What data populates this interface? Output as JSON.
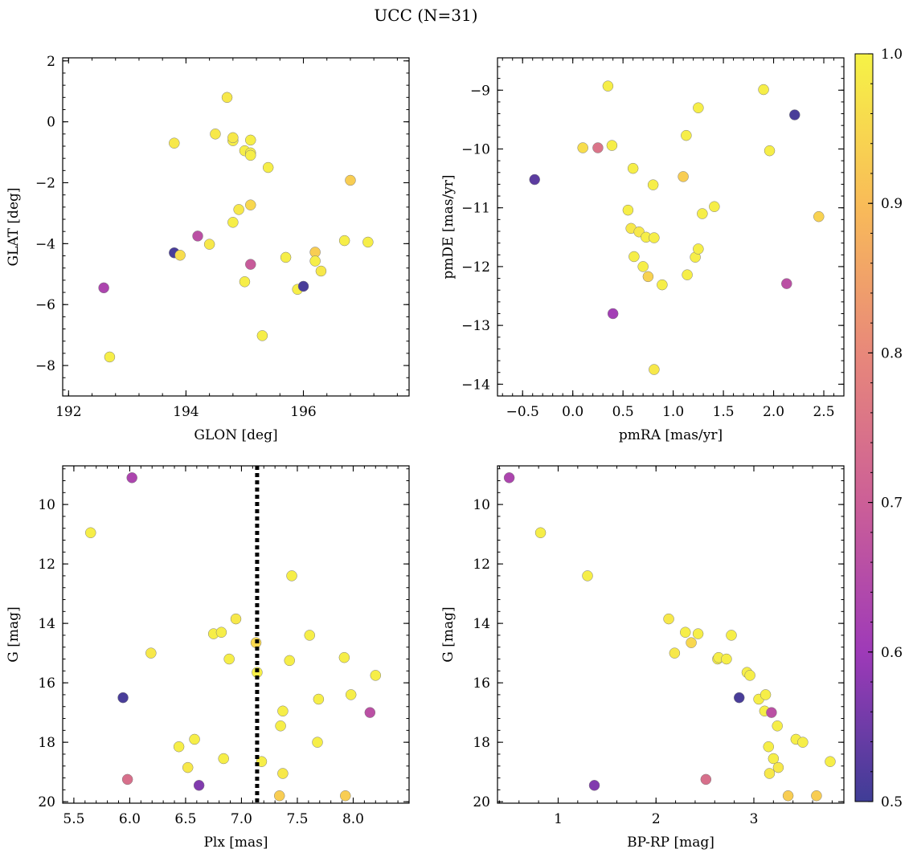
{
  "figure": {
    "title": "UCC (N=31)"
  },
  "colorbar": {
    "min": 0.5,
    "max": 1.0,
    "ticks": [
      0.5,
      0.6,
      0.7,
      0.8,
      0.9,
      1.0
    ],
    "tick_labels": [
      "0.5",
      "0.6",
      "0.7",
      "0.8",
      "0.9",
      "1.0"
    ],
    "colormap": "plasma"
  },
  "chart_data": [
    {
      "type": "scatter",
      "xlabel": "GLON [deg]",
      "ylabel": "GLAT [deg]",
      "xlim": [
        191.9,
        197.8
      ],
      "ylim": [
        -9.0,
        2.1
      ],
      "xticks": [
        192,
        194,
        196
      ],
      "xtick_labels": [
        "192",
        "194",
        "196"
      ],
      "yticks": [
        2,
        0,
        -2,
        -4,
        -6,
        -8
      ],
      "ytick_labels": [
        "2",
        "0",
        "−2",
        "−4",
        "−6",
        "−8"
      ],
      "y_inverted": false,
      "points": [
        {
          "x": 192.6,
          "y": -5.45,
          "c": 0.63
        },
        {
          "x": 192.7,
          "y": -7.72,
          "c": 0.99
        },
        {
          "x": 193.8,
          "y": -0.7,
          "c": 0.98
        },
        {
          "x": 193.8,
          "y": -4.3,
          "c": 0.51
        },
        {
          "x": 193.9,
          "y": -4.38,
          "c": 0.96
        },
        {
          "x": 194.2,
          "y": -3.75,
          "c": 0.66
        },
        {
          "x": 194.4,
          "y": -4.02,
          "c": 0.98
        },
        {
          "x": 194.5,
          "y": -0.4,
          "c": 0.98
        },
        {
          "x": 194.7,
          "y": 0.8,
          "c": 0.98
        },
        {
          "x": 194.8,
          "y": -0.62,
          "c": 0.99
        },
        {
          "x": 194.8,
          "y": -0.52,
          "c": 0.98
        },
        {
          "x": 194.8,
          "y": -3.3,
          "c": 0.99
        },
        {
          "x": 194.9,
          "y": -2.88,
          "c": 0.98
        },
        {
          "x": 195.0,
          "y": -0.95,
          "c": 0.99
        },
        {
          "x": 195.0,
          "y": -5.25,
          "c": 0.99
        },
        {
          "x": 195.1,
          "y": -1.02,
          "c": 0.99
        },
        {
          "x": 195.1,
          "y": -1.1,
          "c": 0.99
        },
        {
          "x": 195.1,
          "y": -2.73,
          "c": 0.95
        },
        {
          "x": 195.1,
          "y": -4.68,
          "c": 0.69
        },
        {
          "x": 195.1,
          "y": -0.6,
          "c": 0.99
        },
        {
          "x": 195.3,
          "y": -7.02,
          "c": 0.99
        },
        {
          "x": 195.4,
          "y": -1.5,
          "c": 0.99
        },
        {
          "x": 195.7,
          "y": -4.45,
          "c": 0.99
        },
        {
          "x": 195.9,
          "y": -5.5,
          "c": 0.99
        },
        {
          "x": 196.0,
          "y": -5.4,
          "c": 0.51
        },
        {
          "x": 196.2,
          "y": -4.28,
          "c": 0.93
        },
        {
          "x": 196.2,
          "y": -4.57,
          "c": 0.99
        },
        {
          "x": 196.3,
          "y": -4.9,
          "c": 0.98
        },
        {
          "x": 196.7,
          "y": -3.9,
          "c": 0.99
        },
        {
          "x": 196.8,
          "y": -1.92,
          "c": 0.93
        },
        {
          "x": 197.1,
          "y": -3.95,
          "c": 0.99
        }
      ]
    },
    {
      "type": "scatter",
      "xlabel": "pmRA [mas/yr]",
      "ylabel": "pmDE [mas/yr]",
      "xlim": [
        -0.75,
        2.7
      ],
      "ylim": [
        -14.2,
        -8.45
      ],
      "xticks": [
        -0.5,
        0.0,
        0.5,
        1.0,
        1.5,
        2.0,
        2.5
      ],
      "xtick_labels": [
        "−0.5",
        "0.0",
        "0.5",
        "1.0",
        "1.5",
        "2.0",
        "2.5"
      ],
      "yticks": [
        -9,
        -10,
        -11,
        -12,
        -13,
        -14
      ],
      "ytick_labels": [
        "−9",
        "−10",
        "−11",
        "−12",
        "−13",
        "−14"
      ],
      "y_inverted": false,
      "points": [
        {
          "x": -0.38,
          "y": -10.52,
          "c": 0.53
        },
        {
          "x": 0.1,
          "y": -9.98,
          "c": 0.96
        },
        {
          "x": 0.25,
          "y": -9.98,
          "c": 0.75
        },
        {
          "x": 0.35,
          "y": -8.93,
          "c": 0.99
        },
        {
          "x": 0.39,
          "y": -9.94,
          "c": 0.99
        },
        {
          "x": 0.4,
          "y": -12.8,
          "c": 0.61
        },
        {
          "x": 0.55,
          "y": -11.04,
          "c": 0.99
        },
        {
          "x": 0.58,
          "y": -11.35,
          "c": 0.98
        },
        {
          "x": 0.6,
          "y": -10.33,
          "c": 0.99
        },
        {
          "x": 0.61,
          "y": -11.83,
          "c": 0.99
        },
        {
          "x": 0.66,
          "y": -11.41,
          "c": 0.98
        },
        {
          "x": 0.7,
          "y": -12.0,
          "c": 0.99
        },
        {
          "x": 0.73,
          "y": -11.5,
          "c": 0.99
        },
        {
          "x": 0.75,
          "y": -12.17,
          "c": 0.94
        },
        {
          "x": 0.8,
          "y": -10.61,
          "c": 0.99
        },
        {
          "x": 0.81,
          "y": -11.51,
          "c": 0.99
        },
        {
          "x": 0.81,
          "y": -13.75,
          "c": 0.98
        },
        {
          "x": 0.89,
          "y": -12.31,
          "c": 0.99
        },
        {
          "x": 1.1,
          "y": -10.47,
          "c": 0.93
        },
        {
          "x": 1.13,
          "y": -9.77,
          "c": 0.99
        },
        {
          "x": 1.14,
          "y": -12.14,
          "c": 0.99
        },
        {
          "x": 1.22,
          "y": -11.84,
          "c": 0.99
        },
        {
          "x": 1.25,
          "y": -11.7,
          "c": 0.99
        },
        {
          "x": 1.25,
          "y": -9.3,
          "c": 0.99
        },
        {
          "x": 1.29,
          "y": -11.1,
          "c": 0.99
        },
        {
          "x": 1.41,
          "y": -10.98,
          "c": 0.99
        },
        {
          "x": 1.9,
          "y": -8.99,
          "c": 0.99
        },
        {
          "x": 1.96,
          "y": -10.03,
          "c": 0.99
        },
        {
          "x": 2.13,
          "y": -12.29,
          "c": 0.66
        },
        {
          "x": 2.21,
          "y": -9.42,
          "c": 0.51
        },
        {
          "x": 2.45,
          "y": -11.15,
          "c": 0.94
        }
      ]
    },
    {
      "type": "scatter",
      "xlabel": "Plx [mas]",
      "ylabel": "G [mag]",
      "xlim": [
        5.4,
        8.5
      ],
      "ylim": [
        20.05,
        8.7
      ],
      "xticks": [
        5.5,
        6.0,
        6.5,
        7.0,
        7.5,
        8.0
      ],
      "xtick_labels": [
        "5.5",
        "6.0",
        "6.5",
        "7.0",
        "7.5",
        "8.0"
      ],
      "yticks": [
        10,
        12,
        14,
        16,
        18,
        20
      ],
      "ytick_labels": [
        "10",
        "12",
        "14",
        "16",
        "18",
        "20"
      ],
      "y_inverted": true,
      "vline": {
        "x": 7.14,
        "style": "dotted"
      },
      "points": [
        {
          "x": 5.65,
          "y": 10.95,
          "c": 0.99
        },
        {
          "x": 5.94,
          "y": 16.5,
          "c": 0.51
        },
        {
          "x": 5.98,
          "y": 19.25,
          "c": 0.74
        },
        {
          "x": 6.02,
          "y": 9.1,
          "c": 0.63
        },
        {
          "x": 6.19,
          "y": 15.0,
          "c": 0.98
        },
        {
          "x": 6.44,
          "y": 18.15,
          "c": 0.99
        },
        {
          "x": 6.52,
          "y": 18.85,
          "c": 0.98
        },
        {
          "x": 6.58,
          "y": 17.9,
          "c": 0.99
        },
        {
          "x": 6.62,
          "y": 19.45,
          "c": 0.57
        },
        {
          "x": 6.75,
          "y": 14.35,
          "c": 0.99
        },
        {
          "x": 6.82,
          "y": 14.3,
          "c": 0.99
        },
        {
          "x": 6.84,
          "y": 18.55,
          "c": 0.99
        },
        {
          "x": 6.89,
          "y": 15.2,
          "c": 0.99
        },
        {
          "x": 6.95,
          "y": 13.85,
          "c": 0.98
        },
        {
          "x": 7.13,
          "y": 14.65,
          "c": 0.95
        },
        {
          "x": 7.14,
          "y": 15.65,
          "c": 0.99
        },
        {
          "x": 7.18,
          "y": 18.65,
          "c": 0.99
        },
        {
          "x": 7.34,
          "y": 19.8,
          "c": 0.93
        },
        {
          "x": 7.35,
          "y": 17.45,
          "c": 0.99
        },
        {
          "x": 7.37,
          "y": 16.95,
          "c": 0.99
        },
        {
          "x": 7.37,
          "y": 19.05,
          "c": 0.98
        },
        {
          "x": 7.43,
          "y": 15.25,
          "c": 0.99
        },
        {
          "x": 7.45,
          "y": 12.4,
          "c": 0.99
        },
        {
          "x": 7.61,
          "y": 14.4,
          "c": 0.99
        },
        {
          "x": 7.68,
          "y": 18.0,
          "c": 0.99
        },
        {
          "x": 7.69,
          "y": 16.55,
          "c": 0.99
        },
        {
          "x": 7.92,
          "y": 15.15,
          "c": 0.99
        },
        {
          "x": 7.93,
          "y": 19.8,
          "c": 0.93
        },
        {
          "x": 7.98,
          "y": 16.4,
          "c": 0.99
        },
        {
          "x": 8.15,
          "y": 17.0,
          "c": 0.66
        },
        {
          "x": 8.2,
          "y": 15.75,
          "c": 0.99
        }
      ]
    },
    {
      "type": "scatter",
      "xlabel": "BP-RP [mag]",
      "ylabel": "G [mag]",
      "xlim": [
        0.38,
        3.92
      ],
      "ylim": [
        20.05,
        8.7
      ],
      "xticks": [
        1,
        2,
        3
      ],
      "xtick_labels": [
        "1",
        "2",
        "3"
      ],
      "yticks": [
        10,
        12,
        14,
        16,
        18,
        20
      ],
      "ytick_labels": [
        "10",
        "12",
        "14",
        "16",
        "18",
        "20"
      ],
      "y_inverted": true,
      "points": [
        {
          "x": 0.5,
          "y": 9.1,
          "c": 0.63
        },
        {
          "x": 0.82,
          "y": 10.95,
          "c": 0.99
        },
        {
          "x": 1.3,
          "y": 12.4,
          "c": 0.99
        },
        {
          "x": 1.37,
          "y": 19.45,
          "c": 0.57
        },
        {
          "x": 2.13,
          "y": 13.85,
          "c": 0.98
        },
        {
          "x": 2.19,
          "y": 15.0,
          "c": 0.98
        },
        {
          "x": 2.3,
          "y": 14.3,
          "c": 0.99
        },
        {
          "x": 2.36,
          "y": 14.65,
          "c": 0.95
        },
        {
          "x": 2.43,
          "y": 14.35,
          "c": 0.99
        },
        {
          "x": 2.51,
          "y": 19.25,
          "c": 0.74
        },
        {
          "x": 2.63,
          "y": 15.2,
          "c": 0.99
        },
        {
          "x": 2.64,
          "y": 15.15,
          "c": 0.99
        },
        {
          "x": 2.72,
          "y": 15.2,
          "c": 0.99
        },
        {
          "x": 2.77,
          "y": 14.4,
          "c": 0.99
        },
        {
          "x": 2.85,
          "y": 16.5,
          "c": 0.51
        },
        {
          "x": 2.93,
          "y": 15.65,
          "c": 0.99
        },
        {
          "x": 2.96,
          "y": 15.75,
          "c": 0.99
        },
        {
          "x": 3.05,
          "y": 16.55,
          "c": 0.99
        },
        {
          "x": 3.11,
          "y": 16.95,
          "c": 0.99
        },
        {
          "x": 3.12,
          "y": 16.4,
          "c": 0.99
        },
        {
          "x": 3.15,
          "y": 18.15,
          "c": 0.99
        },
        {
          "x": 3.16,
          "y": 19.05,
          "c": 0.98
        },
        {
          "x": 3.18,
          "y": 17.0,
          "c": 0.66
        },
        {
          "x": 3.2,
          "y": 18.55,
          "c": 0.99
        },
        {
          "x": 3.24,
          "y": 17.45,
          "c": 0.99
        },
        {
          "x": 3.25,
          "y": 18.85,
          "c": 0.98
        },
        {
          "x": 3.35,
          "y": 19.8,
          "c": 0.93
        },
        {
          "x": 3.43,
          "y": 17.9,
          "c": 0.99
        },
        {
          "x": 3.5,
          "y": 18.0,
          "c": 0.99
        },
        {
          "x": 3.64,
          "y": 19.8,
          "c": 0.93
        },
        {
          "x": 3.78,
          "y": 18.65,
          "c": 0.99
        }
      ]
    }
  ]
}
